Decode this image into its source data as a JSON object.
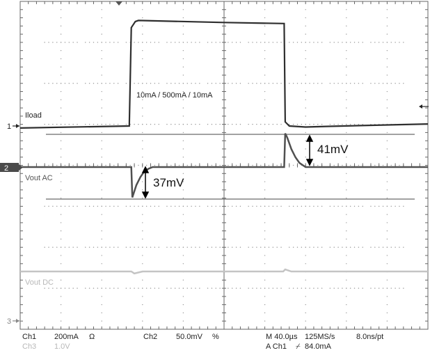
{
  "chart_data": {
    "type": "line",
    "title": "",
    "annotations": {
      "load_step": "10mA / 500mA / 10mA",
      "overshoot": "41mV",
      "undershoot": "37mV"
    },
    "traces": [
      {
        "label": "Iload",
        "marker": "1",
        "unit": "mA",
        "x_us": [
          -200,
          -93,
          -91,
          -87,
          -84,
          0,
          59,
          60,
          64,
          80,
          100,
          200
        ],
        "y_mA": [
          -10,
          0,
          480,
          510,
          515,
          505,
          500,
          20,
          0,
          -5,
          -2,
          10
        ]
      },
      {
        "label": "Vout AC",
        "marker": "2",
        "unit": "mV",
        "x_us": [
          -200,
          -91,
          -90,
          -86,
          -82,
          -78,
          -74,
          -70,
          59,
          60,
          62,
          66,
          70,
          74,
          80,
          200
        ],
        "y_mV": [
          0,
          0,
          -37,
          -22,
          -12,
          -5,
          -2,
          0,
          0,
          41,
          36,
          22,
          12,
          5,
          0,
          0
        ]
      },
      {
        "label": "Vout DC",
        "marker": "3",
        "unit": "V",
        "x_us": [
          -200,
          -91,
          -88,
          -80,
          58,
          60,
          66,
          200
        ],
        "y_V": [
          0.0,
          0.0,
          -0.05,
          0.0,
          0.0,
          0.05,
          0.0,
          0.0
        ]
      }
    ],
    "grid": true
  },
  "readout": {
    "row1": {
      "ch1": "Ch1",
      "ch1_scale": "200mA",
      "ch1_coupling": "Ω",
      "ch2": "Ch2",
      "ch2_scale": "50.0mV",
      "ch2_coupling": "%",
      "timebase": "M 40.0µs",
      "sample_rate": "125MS/s",
      "resolution": "8.0ns/pt"
    },
    "row2": {
      "ch3": "Ch3",
      "ch3_scale": "1.0V",
      "trigger": "A  Ch1",
      "trigger_slope": "⌿",
      "trigger_level": "84.0mA"
    }
  }
}
